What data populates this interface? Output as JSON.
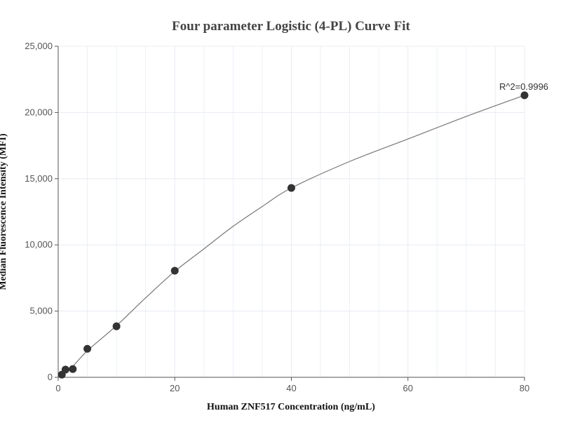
{
  "chart_data": {
    "type": "scatter",
    "title": "Four parameter Logistic (4-PL) Curve Fit",
    "xlabel": "Human ZNF517 Concentration (ng/mL)",
    "ylabel": "Median Fluorescence Intensity (MFI)",
    "xlim": [
      0,
      80
    ],
    "ylim": [
      0,
      25000
    ],
    "x_ticks": [
      0,
      20,
      40,
      60,
      80
    ],
    "y_ticks": [
      0,
      5000,
      10000,
      15000,
      20000,
      25000
    ],
    "x_tick_labels": [
      "0",
      "20",
      "40",
      "60",
      "80"
    ],
    "y_tick_labels": [
      "0",
      "5,000",
      "10,000",
      "15,000",
      "20,000",
      "25,000"
    ],
    "grid": true,
    "points": [
      {
        "x": 0.625,
        "y": 200
      },
      {
        "x": 1.25,
        "y": 580
      },
      {
        "x": 2.5,
        "y": 620
      },
      {
        "x": 5,
        "y": 2150
      },
      {
        "x": 10,
        "y": 3850
      },
      {
        "x": 20,
        "y": 8050
      },
      {
        "x": 40,
        "y": 14300
      },
      {
        "x": 80,
        "y": 21300
      }
    ],
    "fit_curve": {
      "model": "4PL",
      "samples": [
        {
          "x": 0,
          "y": 0
        },
        {
          "x": 2,
          "y": 600
        },
        {
          "x": 5,
          "y": 2000
        },
        {
          "x": 10,
          "y": 3900
        },
        {
          "x": 15,
          "y": 6000
        },
        {
          "x": 20,
          "y": 8000
        },
        {
          "x": 25,
          "y": 9700
        },
        {
          "x": 30,
          "y": 11400
        },
        {
          "x": 35,
          "y": 12900
        },
        {
          "x": 40,
          "y": 14300
        },
        {
          "x": 50,
          "y": 16300
        },
        {
          "x": 60,
          "y": 18000
        },
        {
          "x": 70,
          "y": 19700
        },
        {
          "x": 80,
          "y": 21300
        }
      ]
    },
    "annotation": "R^2=0.9996",
    "colors": {
      "point": "#333333",
      "curve": "#777777",
      "grid": "#e8ecf2",
      "axis": "#555555"
    }
  }
}
